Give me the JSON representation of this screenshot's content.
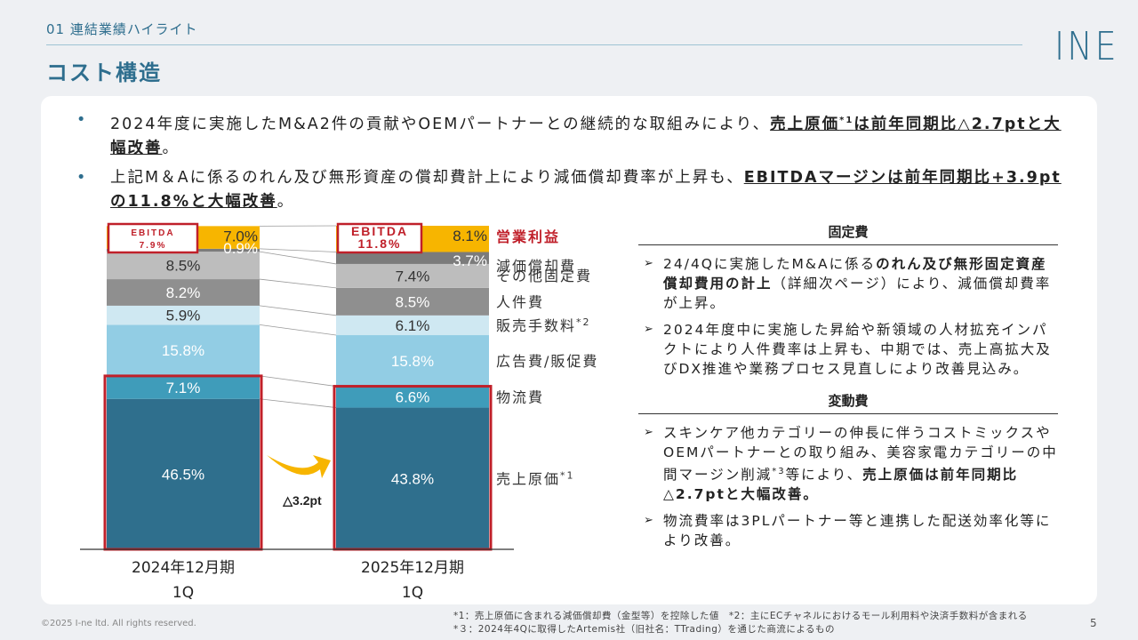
{
  "header": {
    "section": "01 連結業績ハイライト",
    "title": "コスト構造",
    "logo": "INE"
  },
  "bullets": [
    {
      "text_plain": "2024年度に実施したM&A2件の貢献やOEMパートナーとの継続的な取組みにより、",
      "text_bold": "売上原価",
      "sup": "*1",
      "text_bold2": "は前年同期比△2.7ptと大幅改善",
      "text_end": "。"
    },
    {
      "text_plain": "上記M＆Aに係るのれん及び無形資産の償却費計上により減価償却費率が上昇も、",
      "text_bold": "EBITDAマージンは前年同期比+3.9ptの11.8%と大幅改善",
      "text_end": "。"
    }
  ],
  "chart_data": {
    "type": "bar",
    "stacked": true,
    "categories": [
      "2024年12月期\n1Q",
      "2025年12月期\n1Q"
    ],
    "category_lines": [
      [
        "2024年12月期",
        "1Q"
      ],
      [
        "2025年12月期",
        "1Q"
      ]
    ],
    "series": [
      {
        "name": "売上原価",
        "sup": "*1",
        "values": [
          46.5,
          43.8
        ],
        "labels": [
          "46.5%",
          "43.8%"
        ],
        "color": "#2f6f8d",
        "label_color": "#ffffff"
      },
      {
        "name": "物流費",
        "values": [
          7.1,
          6.6
        ],
        "labels": [
          "7.1%",
          "6.6%"
        ],
        "color": "#3f9cba",
        "label_color": "#ffffff"
      },
      {
        "name": "広告費/販促費",
        "values": [
          15.8,
          15.8
        ],
        "labels": [
          "15.8%",
          "15.8%"
        ],
        "color": "#92cde4",
        "label_color": "#ffffff"
      },
      {
        "name": "販売手数料",
        "sup": "*2",
        "values": [
          5.9,
          6.1
        ],
        "labels": [
          "5.9%",
          "6.1%"
        ],
        "color": "#cfe8f2",
        "label_color": "#333333"
      },
      {
        "name": "人件費",
        "values": [
          8.2,
          8.5
        ],
        "labels": [
          "8.2%",
          "8.5%"
        ],
        "color": "#8f8f8f",
        "label_color": "#ffffff"
      },
      {
        "name": "その他固定費",
        "values": [
          8.5,
          7.4
        ],
        "labels": [
          "8.5%",
          "7.4%"
        ],
        "color": "#bdbdbd",
        "label_color": "#333333"
      },
      {
        "name": "減価償却費",
        "values": [
          0.9,
          3.7
        ],
        "labels": [
          "0.9%",
          "3.7%"
        ],
        "color": "#7b7b7b",
        "label_color": "#ffffff"
      },
      {
        "name": "営業利益",
        "values": [
          7.0,
          8.1
        ],
        "labels": [
          "7.0%",
          "8.1%"
        ],
        "color": "#f7b500",
        "label_color": "#333333"
      }
    ],
    "ebitda_boxes": [
      {
        "title": "EBITDA",
        "value": "7.9%"
      },
      {
        "title": "EBITDA",
        "value": "11.8%"
      }
    ],
    "change_label": "△3.2pt",
    "ylim": [
      0,
      100
    ]
  },
  "right": {
    "fixed_head": "固定費",
    "fixed_items": [
      {
        "plain": "24/4Qに実施したM&Aに係る",
        "bold": "のれん及び無形固定資産償却費用の計上",
        "end": "（詳細次ページ）により、減価償却費率が上昇。"
      },
      {
        "plain": "2024年度中に実施した昇給や新領域の人材拡充インパクトにより人件費率は上昇も、中期では、売上高拡大及びDX推進や業務プロセス見直しにより改善見込み。",
        "bold": "",
        "end": ""
      }
    ],
    "variable_head": "変動費",
    "variable_items": [
      {
        "plain": "スキンケア他カテゴリーの伸長に伴うコストミックスやOEMパートナーとの取り組み、美容家電カテゴリーの中間マージン削減",
        "sup": "*3",
        "plain2": "等により、",
        "bold": "売上原価は前年同期比△2.7ptと大幅改善。"
      },
      {
        "plain": "物流費率は3PLパートナー等と連携した配送効率化等により改善。",
        "sup": "",
        "plain2": "",
        "bold": ""
      }
    ]
  },
  "footer": {
    "copyright": "©2025 I-ne ltd. All rights reserved.",
    "note1": "*1：売上原価に含まれる減価償却費（金型等）を控除した値　*2：主にECチャネルにおけるモール利用料や決済手数料が含まれる",
    "note2": "*３：2024年4Qに取得したArtemis社（旧社名：TTrading）を通じた商流によるもの",
    "page": "5"
  }
}
